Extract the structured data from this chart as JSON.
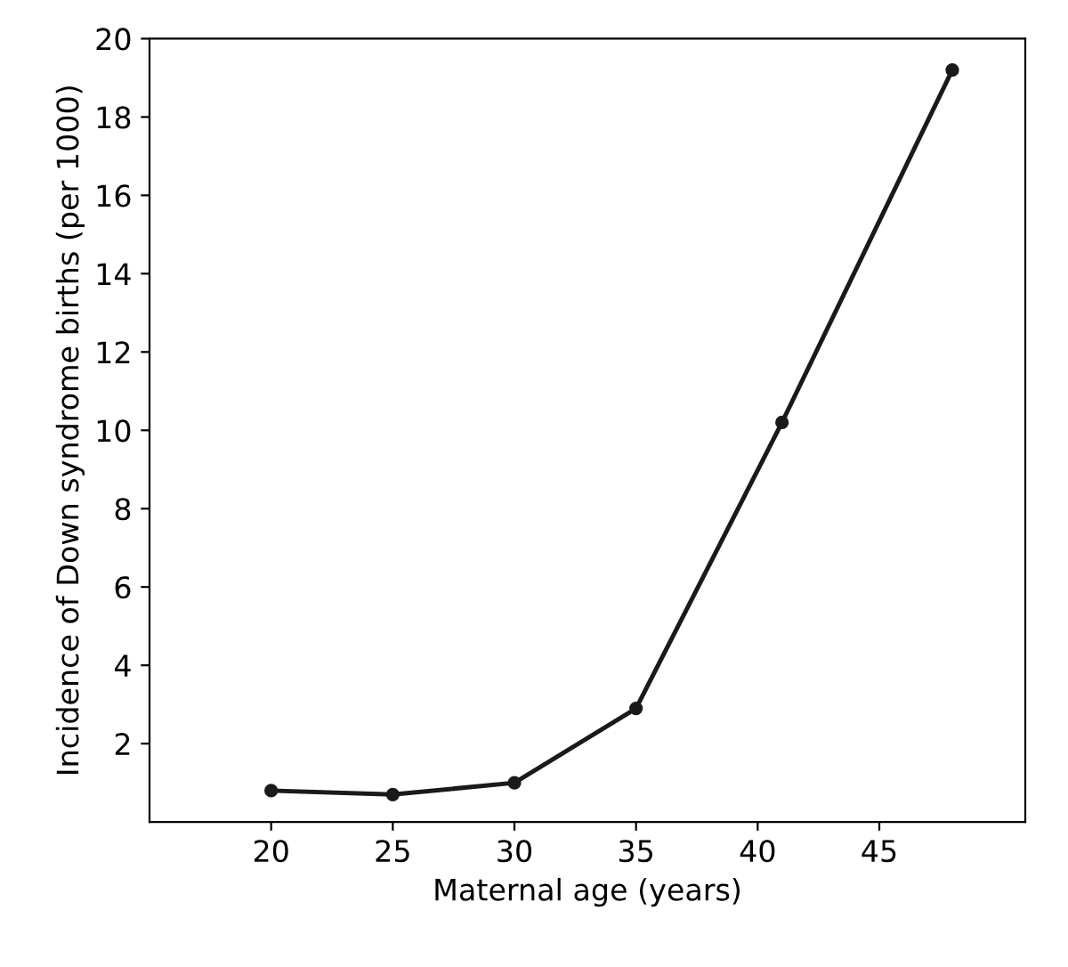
{
  "chart_data": {
    "type": "line",
    "xlabel": "Maternal age (years)",
    "ylabel": "Incidence of Down syndrome births (per 1000)",
    "x": [
      20,
      25,
      30,
      35,
      41,
      48
    ],
    "series": [
      {
        "color": "#1a1a1a",
        "values": [
          0.8,
          0.7,
          1.0,
          2.9,
          10.2,
          19.2
        ]
      }
    ],
    "xlim": [
      15,
      51
    ],
    "xticks": [
      20,
      25,
      30,
      35,
      40,
      45
    ],
    "ylim": [
      0,
      20
    ],
    "yticks": [
      2,
      4,
      6,
      8,
      10,
      12,
      14,
      16,
      18,
      20
    ],
    "marker": "circle",
    "line_style": "solid",
    "grid": false,
    "legend": false
  }
}
